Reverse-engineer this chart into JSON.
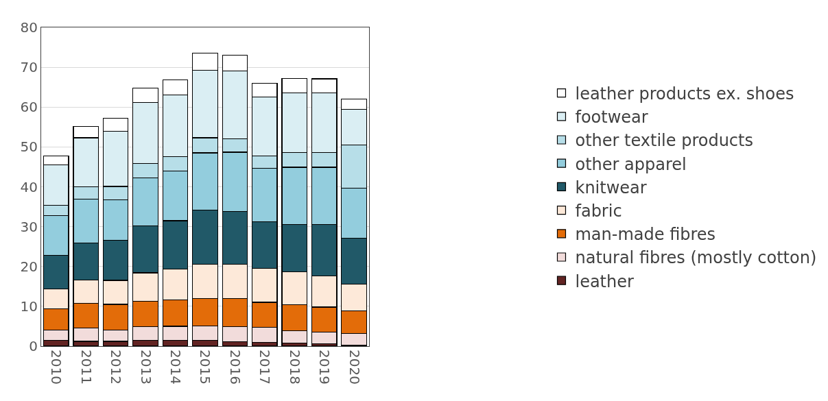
{
  "chart_data": {
    "type": "bar",
    "stacked": true,
    "categories": [
      "2010",
      "2011",
      "2012",
      "2013",
      "2014",
      "2015",
      "2016",
      "2017",
      "2018",
      "2019",
      "2020"
    ],
    "ylim": [
      0,
      80
    ],
    "yticks": [
      0,
      10,
      20,
      30,
      40,
      50,
      60,
      70,
      80
    ],
    "grid": "y",
    "legend": "right",
    "series": [
      {
        "name": "leather",
        "color": "#622423",
        "values": [
          1.4,
          1.2,
          1.2,
          1.4,
          1.5,
          1.5,
          1.1,
          1.0,
          0.8,
          0.6,
          0.2
        ]
      },
      {
        "name": "natural fibres (mostly cotton)",
        "color": "#f2dcdb",
        "values": [
          2.6,
          3.3,
          2.9,
          3.5,
          3.5,
          3.6,
          3.8,
          3.8,
          3.1,
          2.9,
          3.0
        ]
      },
      {
        "name": "man-made fibres",
        "color": "#e36c09",
        "values": [
          5.4,
          6.2,
          6.4,
          6.4,
          6.6,
          6.9,
          7.0,
          6.2,
          6.5,
          6.3,
          5.6
        ]
      },
      {
        "name": "fabric",
        "color": "#fde9d9",
        "values": [
          5.0,
          5.9,
          6.0,
          7.1,
          7.7,
          8.6,
          8.6,
          8.5,
          8.2,
          7.9,
          6.8
        ]
      },
      {
        "name": "knitwear",
        "color": "#215968",
        "values": [
          8.4,
          9.3,
          10.1,
          11.8,
          12.2,
          13.6,
          13.3,
          11.7,
          12.0,
          12.9,
          11.5
        ]
      },
      {
        "name": "other apparel",
        "color": "#93cddd",
        "values": [
          10.0,
          11.0,
          10.2,
          12.0,
          12.5,
          14.3,
          14.9,
          13.4,
          14.3,
          14.3,
          12.6
        ]
      },
      {
        "name": "other textile products",
        "color": "#b7dee8",
        "values": [
          2.5,
          3.1,
          3.3,
          3.6,
          3.6,
          3.8,
          3.4,
          3.2,
          3.7,
          3.7,
          10.8
        ]
      },
      {
        "name": "footwear",
        "color": "#daeef3",
        "values": [
          10.2,
          12.3,
          13.8,
          15.3,
          15.4,
          17.0,
          17.0,
          14.7,
          15.0,
          15.0,
          8.9
        ]
      },
      {
        "name": "leather products ex. shoes",
        "color": "#ffffff",
        "values": [
          2.3,
          2.9,
          3.3,
          3.7,
          3.8,
          4.2,
          4.0,
          3.5,
          3.6,
          3.5,
          2.6
        ]
      }
    ]
  }
}
